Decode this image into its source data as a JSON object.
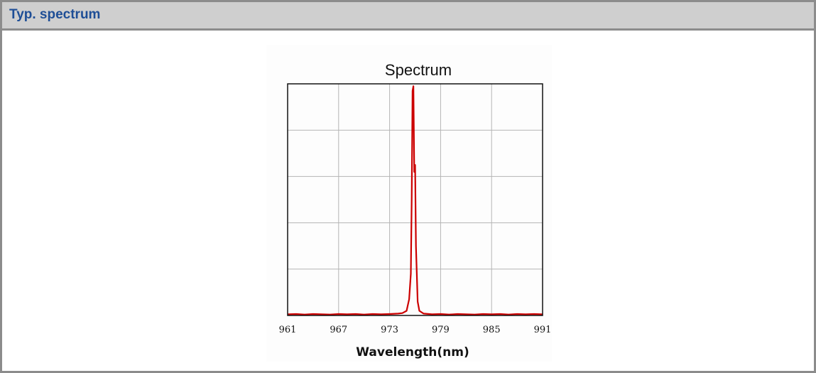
{
  "header": {
    "title": "Typ. spectrum"
  },
  "chart_data": {
    "type": "line",
    "title": "Spectrum",
    "xlabel": "Wavelength(nm)",
    "ylabel": "",
    "xlim": [
      961,
      991
    ],
    "ylim": [
      0,
      1
    ],
    "grid": true,
    "x_ticks": [
      961,
      967,
      973,
      979,
      985,
      991
    ],
    "series": [
      {
        "color": "#cc0000",
        "x": [
          961,
          962,
          963,
          964,
          965,
          966,
          967,
          968,
          969,
          970,
          971,
          972,
          973,
          974,
          974.5,
          975,
          975.3,
          975.5,
          975.6,
          975.7,
          975.8,
          975.9,
          976.0,
          976.1,
          976.2,
          976.3,
          976.5,
          977,
          978,
          979,
          980,
          981,
          982,
          983,
          984,
          985,
          986,
          987,
          988,
          989,
          990,
          991
        ],
        "y": [
          0.005,
          0.006,
          0.004,
          0.006,
          0.005,
          0.004,
          0.006,
          0.005,
          0.006,
          0.004,
          0.006,
          0.005,
          0.006,
          0.008,
          0.01,
          0.02,
          0.07,
          0.18,
          0.5,
          0.97,
          0.99,
          0.62,
          0.65,
          0.3,
          0.18,
          0.06,
          0.02,
          0.008,
          0.005,
          0.006,
          0.004,
          0.006,
          0.005,
          0.004,
          0.006,
          0.005,
          0.006,
          0.004,
          0.006,
          0.005,
          0.006,
          0.005
        ]
      }
    ]
  },
  "colors": {
    "header_bg": "#cfcfcf",
    "header_text": "#1e4e96",
    "border": "#8c8c8c",
    "series": "#cc0000",
    "grid": "#b4b4b4"
  }
}
